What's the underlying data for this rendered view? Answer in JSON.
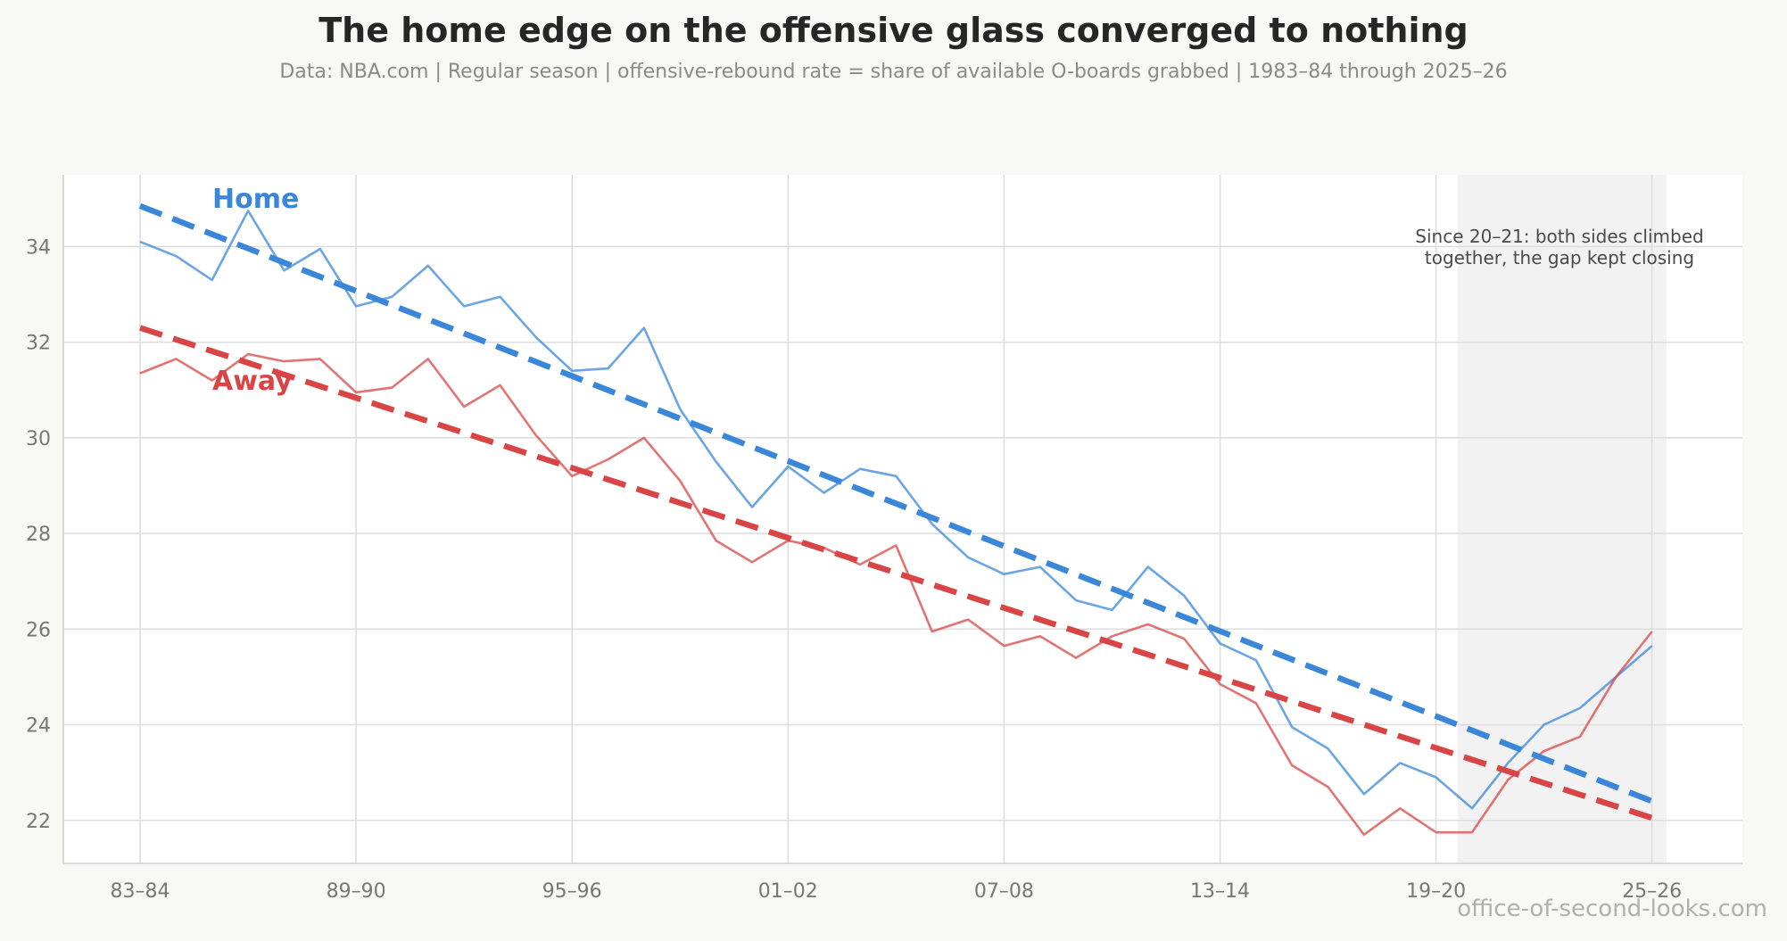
{
  "chart_data": {
    "type": "line",
    "title": "The home edge on the offensive glass converged to nothing",
    "subtitle": "Data: NBA.com  |  Regular season  |  offensive-rebound rate = share of available O-boards grabbed  |  1983–84 through 2025–26",
    "xlabel": "",
    "ylabel": "",
    "x": [
      "83–84",
      "84–85",
      "85–86",
      "86–87",
      "87–88",
      "88–89",
      "89–90",
      "90–91",
      "91–92",
      "92–93",
      "93–94",
      "94–95",
      "95–96",
      "96–97",
      "97–98",
      "98–99",
      "99–00",
      "00–01",
      "01–02",
      "02–03",
      "03–04",
      "04–05",
      "05–06",
      "06–07",
      "07–08",
      "08–09",
      "09–10",
      "10–11",
      "11–12",
      "12–13",
      "13–14",
      "14–15",
      "15–16",
      "16–17",
      "17–18",
      "18–19",
      "19–20",
      "20–21",
      "21–22",
      "22–23",
      "23–24",
      "24–25",
      "25–26"
    ],
    "x_ticks": [
      "83–84",
      "89–90",
      "95–96",
      "01–02",
      "07–08",
      "13–14",
      "19–20",
      "25–26"
    ],
    "ylim": [
      21.1,
      35.5
    ],
    "y_ticks": [
      22,
      24,
      26,
      28,
      30,
      32,
      34
    ],
    "grid": true,
    "series": [
      {
        "name": "Home",
        "color": "#3a87d9",
        "values": [
          34.1,
          33.8,
          33.3,
          34.75,
          33.5,
          33.95,
          32.75,
          32.95,
          33.6,
          32.75,
          32.95,
          32.1,
          31.4,
          31.45,
          32.3,
          30.6,
          29.5,
          28.55,
          29.4,
          28.85,
          29.35,
          29.2,
          28.2,
          27.5,
          27.15,
          27.3,
          26.6,
          26.4,
          27.3,
          26.7,
          25.7,
          25.35,
          23.95,
          23.5,
          22.55,
          23.2,
          22.9,
          22.25,
          23.2,
          24.0,
          24.35,
          25.0,
          25.65
        ]
      },
      {
        "name": "Away",
        "color": "#d94545",
        "values": [
          31.35,
          31.65,
          31.2,
          31.75,
          31.6,
          31.65,
          30.95,
          31.05,
          31.65,
          30.65,
          31.1,
          30.05,
          29.2,
          29.55,
          30.0,
          29.1,
          27.85,
          27.4,
          27.85,
          27.7,
          27.35,
          27.75,
          25.95,
          26.2,
          25.65,
          25.85,
          25.4,
          25.85,
          26.1,
          25.8,
          24.85,
          24.45,
          23.15,
          22.7,
          21.7,
          22.25,
          21.75,
          21.75,
          22.85,
          23.45,
          23.75,
          25.0,
          25.95
        ]
      }
    ],
    "trend_lines": [
      {
        "series": "Home",
        "start": 34.85,
        "end": 22.4,
        "style": "dashed"
      },
      {
        "series": "Away",
        "start": 32.3,
        "end": 22.05,
        "style": "dashed"
      }
    ],
    "highlight_range": {
      "from": "20–21",
      "to": "25–26"
    },
    "annotation_text": "Since 20–21: both sides climbed\ntogether, the gap kept closing",
    "colors": {
      "home": "#3a87d9",
      "away": "#d94545",
      "grid": "#dedede",
      "band": "#f2f2f2"
    }
  },
  "watermark": "office-of-second-looks.com"
}
